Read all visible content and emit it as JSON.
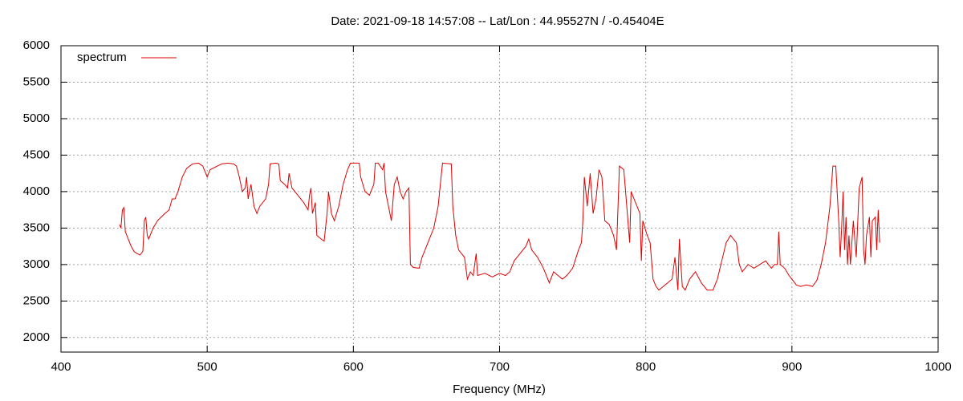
{
  "chart_data": {
    "type": "line",
    "title": "Date: 2021-09-18 14:57:08  --  Lat/Lon : 44.95527N / -0.45404E",
    "x_label": "Frequency (MHz)",
    "xlim": [
      400,
      1000
    ],
    "xticks": [
      400,
      500,
      600,
      700,
      800,
      900,
      1000
    ],
    "ylim": [
      1800,
      6000
    ],
    "yticks": [
      2000,
      2500,
      3000,
      3500,
      4000,
      4500,
      5000,
      5500,
      6000
    ],
    "grid": true,
    "legend": "top-left",
    "x": [
      440,
      441,
      442,
      443,
      444,
      446,
      448,
      450,
      452,
      454,
      456,
      457,
      458,
      459,
      460,
      463,
      466,
      470,
      474,
      476,
      478,
      480,
      483,
      486,
      490,
      494,
      497,
      500,
      502,
      506,
      510,
      514,
      518,
      520,
      522,
      524,
      526,
      527,
      528,
      530,
      532,
      534,
      536,
      540,
      542,
      543,
      547,
      549,
      550,
      553,
      555,
      556,
      558,
      562,
      566,
      569,
      570,
      571,
      572,
      574,
      575,
      578,
      580,
      582,
      583,
      585,
      587,
      590,
      593,
      596,
      598,
      604,
      605,
      608,
      611,
      614,
      615,
      617,
      620,
      621,
      622,
      624,
      626,
      628,
      630,
      632,
      634,
      636,
      638,
      639,
      641,
      645,
      647,
      649,
      651,
      655,
      658,
      660,
      661,
      667,
      668,
      670,
      672,
      676,
      678,
      680,
      682,
      684,
      685,
      690,
      695,
      700,
      704,
      707,
      710,
      714,
      718,
      720,
      722,
      726,
      730,
      734,
      737,
      740,
      743,
      746,
      750,
      754,
      756,
      757,
      758,
      760,
      762,
      764,
      766,
      768,
      770,
      772,
      775,
      778,
      780,
      782,
      785,
      787,
      789,
      790,
      792,
      794,
      796,
      797,
      798,
      801,
      803,
      805,
      807,
      809,
      812,
      815,
      818,
      820,
      822,
      823,
      825,
      827,
      830,
      834,
      838,
      842,
      846,
      849,
      852,
      855,
      858,
      862,
      864,
      866,
      870,
      874,
      878,
      882,
      886,
      888,
      890,
      891,
      892,
      895,
      898,
      900,
      903,
      906,
      910,
      914,
      917,
      920,
      923,
      926,
      928,
      930,
      932,
      933,
      934,
      935,
      936,
      937,
      938,
      939,
      940,
      942,
      944,
      946,
      948,
      949,
      950,
      951,
      953,
      954,
      955,
      957,
      958,
      959,
      960
    ],
    "series": [
      {
        "name": "spectrum",
        "color": "#e00000",
        "values": [
          3550,
          3500,
          3750,
          3780,
          3450,
          3350,
          3250,
          3180,
          3150,
          3130,
          3180,
          3600,
          3650,
          3400,
          3350,
          3500,
          3600,
          3680,
          3750,
          3900,
          3900,
          4000,
          4200,
          4320,
          4380,
          4390,
          4350,
          4200,
          4300,
          4340,
          4380,
          4390,
          4380,
          4350,
          4200,
          4000,
          4050,
          4200,
          3900,
          4100,
          3800,
          3700,
          3800,
          3900,
          4100,
          4380,
          4390,
          4380,
          4150,
          4100,
          4050,
          4250,
          4050,
          3950,
          3850,
          3750,
          3950,
          4050,
          3700,
          3850,
          3400,
          3350,
          3320,
          3700,
          4000,
          3700,
          3600,
          3800,
          4100,
          4300,
          4390,
          4390,
          4200,
          4000,
          3950,
          4100,
          4390,
          4390,
          4300,
          4390,
          4000,
          3800,
          3600,
          4100,
          4200,
          4000,
          3900,
          4000,
          4050,
          3000,
          2960,
          2950,
          3100,
          3200,
          3300,
          3500,
          3800,
          4200,
          4390,
          4380,
          3800,
          3400,
          3200,
          3100,
          2800,
          2900,
          2850,
          3150,
          2850,
          2880,
          2830,
          2880,
          2850,
          2900,
          3050,
          3150,
          3250,
          3350,
          3200,
          3100,
          2950,
          2750,
          2900,
          2850,
          2800,
          2850,
          2950,
          3200,
          3300,
          3600,
          4200,
          3800,
          4250,
          3700,
          3900,
          4300,
          4200,
          3600,
          3550,
          3400,
          3200,
          4350,
          4300,
          3800,
          3300,
          4000,
          3900,
          3800,
          3700,
          3050,
          3600,
          3400,
          3300,
          2800,
          2700,
          2650,
          2700,
          2750,
          2800,
          3100,
          2650,
          3350,
          2700,
          2650,
          2800,
          2900,
          2750,
          2650,
          2650,
          2800,
          3050,
          3300,
          3400,
          3300,
          3000,
          2900,
          3000,
          2950,
          3000,
          3050,
          2950,
          3000,
          3000,
          3450,
          3000,
          2950,
          2850,
          2800,
          2720,
          2700,
          2720,
          2700,
          2780,
          3000,
          3300,
          3800,
          4350,
          4350,
          3600,
          3100,
          3500,
          4000,
          3200,
          3650,
          3000,
          3400,
          3000,
          3600,
          3100,
          4050,
          4200,
          3200,
          3000,
          3400,
          3650,
          3100,
          3600,
          3650,
          3200,
          3750,
          3300
        ]
      }
    ]
  }
}
